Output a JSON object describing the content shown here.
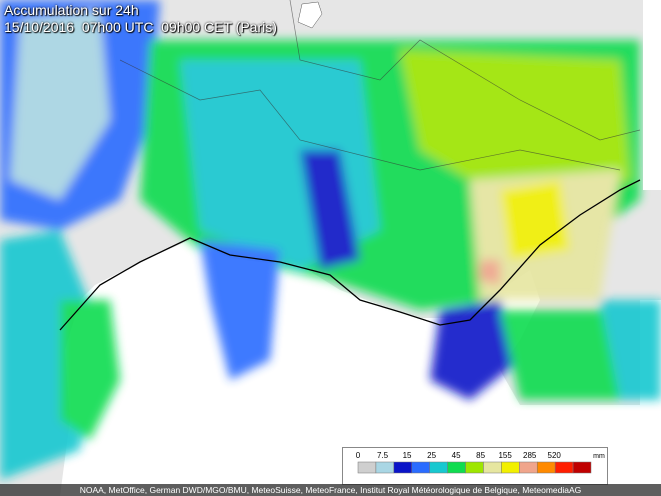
{
  "header": {
    "title": "Accumulation sur 24h",
    "datetime": "15/10/2016  07h00 UTC  09h00 CET (Paris)"
  },
  "legend": {
    "labels": [
      "0",
      "7.5",
      "15",
      "25",
      "45",
      "85",
      "155",
      "285",
      "520"
    ],
    "unit": "mm",
    "colors": [
      "#cfcfcf",
      "#a9d6e4",
      "#0a14c8",
      "#2a6cff",
      "#18c8d0",
      "#10dc50",
      "#9ee600",
      "#e6e6a0",
      "#f2f000",
      "#f0a58c",
      "#ff8a00",
      "#ff1e00",
      "#c00000"
    ]
  },
  "credits": "NOAA, MetOffice, German DWD/MGO/BMU, MeteoSuisse, MeteoFrance, Institut Royal Météorologique de Belgique, MeteomediaAG"
}
